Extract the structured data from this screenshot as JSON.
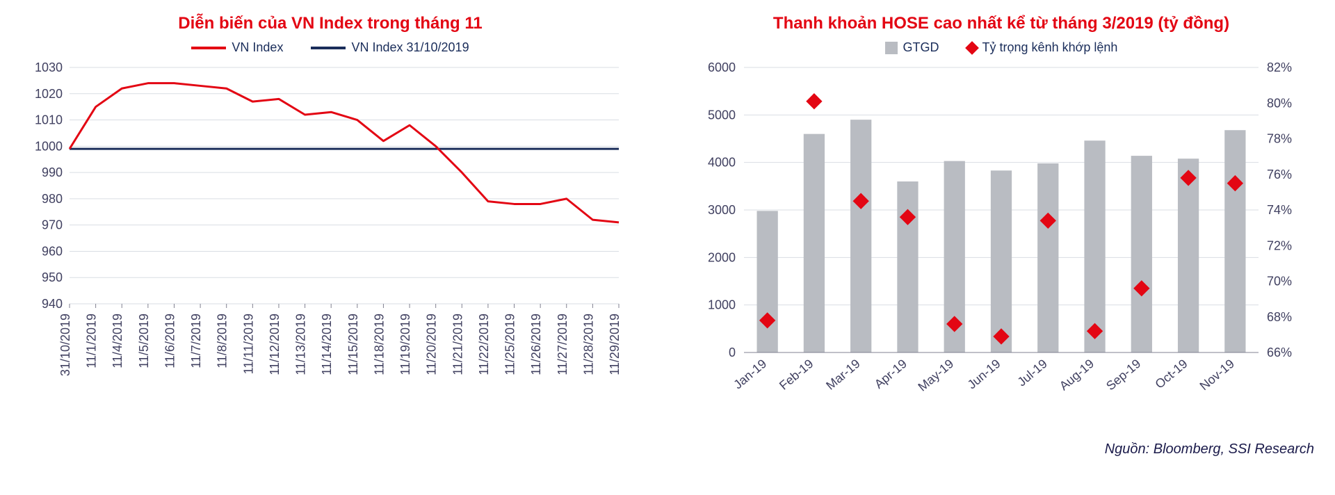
{
  "left_chart": {
    "type": "line",
    "title": "Diễn biến của VN Index trong tháng 11",
    "title_fontsize": 24,
    "title_color": "#e30613",
    "series": [
      {
        "name": "VN Index",
        "color": "#e30613",
        "width": 3
      },
      {
        "name": "VN Index 31/10/2019",
        "color": "#1a2d5a",
        "width": 3
      }
    ],
    "x_labels": [
      "31/10/2019",
      "11/1/2019",
      "11/4/2019",
      "11/5/2019",
      "11/6/2019",
      "11/7/2019",
      "11/8/2019",
      "11/11/2019",
      "11/12/2019",
      "11/13/2019",
      "11/14/2019",
      "11/15/2019",
      "11/18/2019",
      "11/19/2019",
      "11/20/2019",
      "11/21/2019",
      "11/22/2019",
      "11/25/2019",
      "11/26/2019",
      "11/27/2019",
      "11/28/2019",
      "11/29/2019"
    ],
    "vn_index": [
      999,
      1015,
      1022,
      1024,
      1024,
      1023,
      1022,
      1017,
      1018,
      1012,
      1013,
      1010,
      1002,
      1008,
      1000,
      990,
      979,
      978,
      978,
      980,
      972,
      971
    ],
    "baseline": 999,
    "ylim": [
      940,
      1030
    ],
    "ytick_step": 10,
    "background_color": "#ffffff",
    "grid_color": "#d9dde3",
    "axis_font_size": 18,
    "x_label_rotation": -90
  },
  "right_chart": {
    "type": "bar+marker",
    "title": "Thanh khoản HOSE cao nhất kể từ tháng 3/2019 (tỷ đồng)",
    "title_fontsize": 24,
    "title_color": "#e30613",
    "x_labels": [
      "Jan-19",
      "Feb-19",
      "Mar-19",
      "Apr-19",
      "May-19",
      "Jun-19",
      "Jul-19",
      "Aug-19",
      "Sep-19",
      "Oct-19",
      "Nov-19"
    ],
    "bar_series": {
      "name": "GTGD",
      "color": "#b9bcc2",
      "values": [
        2980,
        4600,
        4900,
        3600,
        4030,
        3830,
        3980,
        4460,
        4140,
        4080,
        4680
      ],
      "bar_width": 0.45
    },
    "marker_series": {
      "name": "Tỷ trọng kênh khớp lệnh",
      "color": "#e30613",
      "marker": "diamond",
      "marker_size": 14,
      "values_pct": [
        67.8,
        80.1,
        74.5,
        73.6,
        67.6,
        66.9,
        73.4,
        67.2,
        69.6,
        75.8,
        75.5
      ]
    },
    "y1_lim": [
      0,
      6000
    ],
    "y1_tick_step": 1000,
    "y2_lim": [
      66,
      82
    ],
    "y2_tick_step": 2,
    "background_color": "#ffffff",
    "grid_color": "#d9dde3",
    "axis_font_size": 18,
    "x_label_rotation": -40
  },
  "source_text": "Nguồn: Bloomberg, SSI Research",
  "source_color": "#1a1a4a",
  "source_fontsize": 20
}
